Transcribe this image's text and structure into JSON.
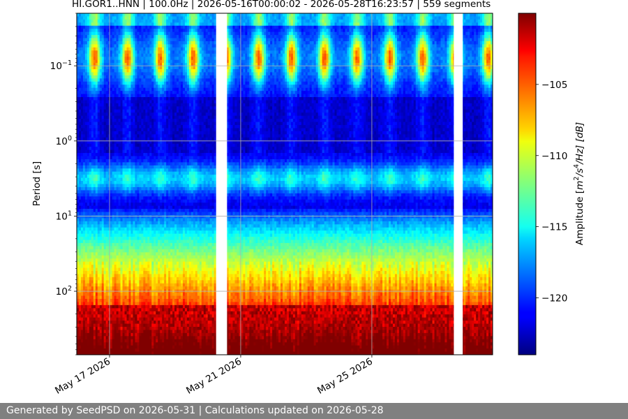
{
  "chart_data": {
    "type": "heatmap",
    "title": "HI.GOR1..HNN | 100.0Hz | 2026-05-16T00:00:02 - 2026-05-28T16:23:57 | 559 segments",
    "ylabel": "Period [s]",
    "yscale": "log",
    "ylim": [
      0.02,
      700
    ],
    "y_inverted": true,
    "y_ticks": [
      {
        "value": 0.1,
        "base": "10",
        "exp": "−1"
      },
      {
        "value": 1,
        "base": "10",
        "exp": "0"
      },
      {
        "value": 10,
        "base": "10",
        "exp": "1"
      },
      {
        "value": 100,
        "base": "10",
        "exp": "2"
      }
    ],
    "xlim": [
      "2026-05-16T00:00:02",
      "2026-05-28T16:23:57"
    ],
    "x_ticks": [
      {
        "date": "2026-05-17",
        "label": "May 17 2026"
      },
      {
        "date": "2026-05-21",
        "label": "May 21 2026"
      },
      {
        "date": "2026-05-25",
        "label": "May 25 2026"
      }
    ],
    "grid": true,
    "colormap": "jet",
    "colorbar": {
      "label": "Amplitude [m²/s⁴/Hz] [dB]",
      "label_parts": {
        "pre": "Amplitude [",
        "m": "m",
        "e1": "2",
        "mid": "/s",
        "e2": "4",
        "post": "/Hz] [dB]"
      },
      "range": [
        -124,
        -100
      ],
      "ticks": [
        -105,
        -110,
        -115,
        -120
      ],
      "tick_labels": [
        "−105",
        "−110",
        "−115",
        "−120"
      ]
    },
    "data_gaps": [
      [
        "2026-05-20T06:00:00",
        "2026-05-20T14:00:00"
      ],
      [
        "2026-05-27T12:00:00",
        "2026-05-27T18:30:00"
      ]
    ]
  },
  "footer": {
    "text": "Generated by SeedPSD on 2026-05-31 | Calculations updated on 2026-05-28"
  }
}
